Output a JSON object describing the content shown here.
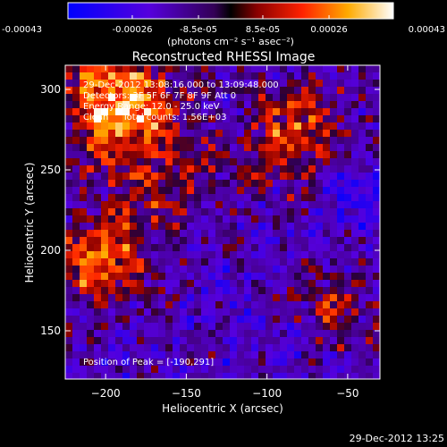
{
  "colorbar": {
    "tick_labels": [
      "-0.00043",
      "-0.00026",
      "-8.5e-05",
      "8.5e-05",
      "0.00026",
      "0.00043"
    ],
    "tick_values": [
      -0.00043,
      -0.00026,
      -8.5e-05,
      8.5e-05,
      0.00026,
      0.00043
    ],
    "range": [
      -0.00043,
      0.00043
    ],
    "units": "(photons cm⁻² s⁻¹ asec⁻²)"
  },
  "chart_data": {
    "type": "heatmap",
    "title": "Reconstructed RHESSI Image",
    "xlabel": "Heliocentric X (arcsec)",
    "ylabel": "Heliocentric Y (arcsec)",
    "xlim": [
      -225,
      -30
    ],
    "ylim": [
      120,
      315
    ],
    "x_ticks": [
      -200,
      -150,
      -100,
      -50
    ],
    "y_ticks": [
      150,
      200,
      250,
      300
    ],
    "x_tick_labels": [
      "−200",
      "−150",
      "−100",
      "−50"
    ],
    "y_tick_labels": [
      "150",
      "200",
      "250",
      "300"
    ],
    "peak_position": [
      -190,
      291
    ],
    "info_lines": [
      "29-Dec-2012 13:08:16.000 to 13:09:48.000",
      "Detectors: 3F 5F 6F 7F 8F 9F Att 0",
      "Energy Range: 12.0 - 25.0 keV",
      "Clean     Total counts: 1.56E+03"
    ],
    "peak_label": "Position of Peak = [-190,291]",
    "colors": {
      "low": "#0000ff",
      "mid": "#7700cc",
      "high": "#ff2200",
      "max": "#ffffff"
    }
  },
  "footer": {
    "timestamp": "29-Dec-2012 13:25"
  }
}
